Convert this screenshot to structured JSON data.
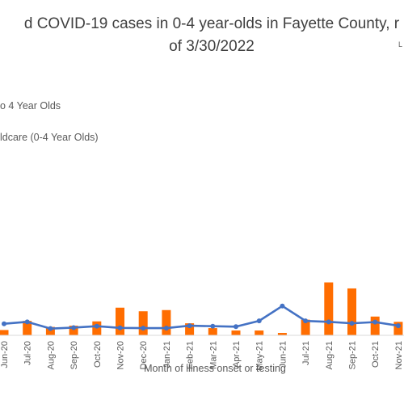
{
  "chart_data": {
    "type": "bar+line",
    "title_lines": [
      "d COVID-19 cases in 0-4 year-olds in Fayette County, r",
      "of 3/30/2022"
    ],
    "corner_label": "L",
    "xlabel": "Month of illness onset or testing",
    "ylabel": "",
    "legend": {
      "position": "top-left",
      "entries": [
        "o 4 Year Olds",
        "ldcare (0-4 Year Olds)"
      ]
    },
    "grid": false,
    "categories": [
      "Jun-20",
      "Jul-20",
      "Aug-20",
      "Sep-20",
      "Oct-20",
      "Nov-20",
      "Dec-20",
      "Jan-21",
      "Feb-21",
      "Mar-21",
      "Apr-21",
      "May-21",
      "Jun-21",
      "Jul-21",
      "Aug-21",
      "Sep-21",
      "Oct-21",
      "Nov-21"
    ],
    "series": [
      {
        "type": "bar",
        "color": "#FF6D00",
        "values": [
          22,
          60,
          35,
          40,
          58,
          115,
          100,
          105,
          50,
          30,
          20,
          20,
          10,
          65,
          220,
          195,
          78,
          56
        ]
      },
      {
        "type": "line",
        "color": "#4472C4",
        "values": [
          48,
          56,
          28,
          32,
          38,
          31,
          30,
          30,
          40,
          38,
          36,
          60,
          122,
          60,
          56,
          50,
          55,
          40
        ]
      }
    ],
    "ylim": [
      0,
      360
    ]
  }
}
